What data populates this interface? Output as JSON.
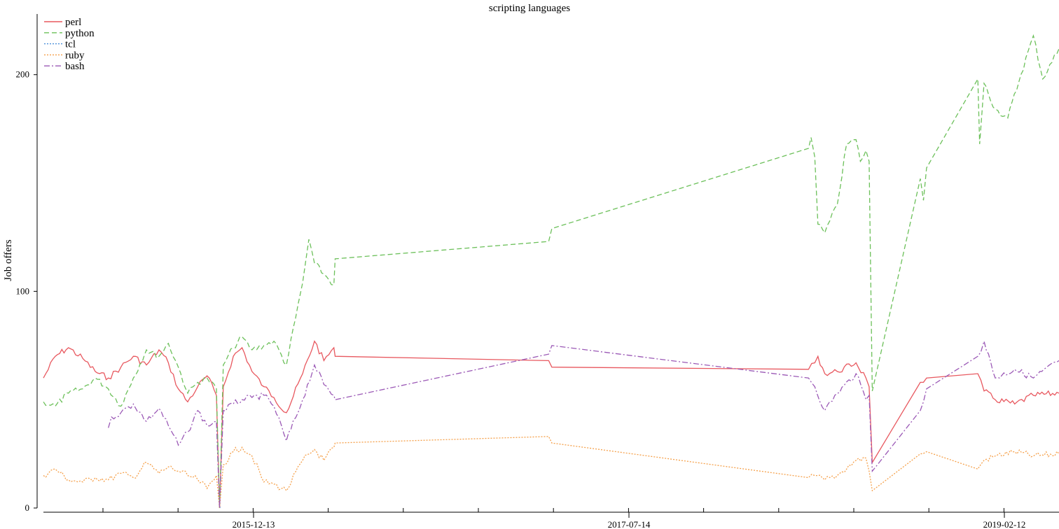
{
  "chart_data": {
    "type": "line",
    "title": "scripting languages",
    "xlabel": "",
    "ylabel": "Job offers",
    "x_tick_labels": [
      "2015-12-13",
      "2017-07-14",
      "2019-02-12"
    ],
    "y_ticks": [
      0,
      100,
      200
    ],
    "ylim": [
      0,
      228
    ],
    "xlim": [
      "2015-01-01",
      "2019-06-15"
    ],
    "grid": false,
    "legend": "top-left",
    "series": [
      {
        "name": "perl",
        "color": "#e8585f",
        "dash": "solid",
        "points": [
          [
            "2015-01-01",
            60
          ],
          [
            "2015-01-20",
            70
          ],
          [
            "2015-02-10",
            74
          ],
          [
            "2015-03-05",
            69
          ],
          [
            "2015-03-25",
            63
          ],
          [
            "2015-04-15",
            60
          ],
          [
            "2015-05-05",
            65
          ],
          [
            "2015-05-25",
            70
          ],
          [
            "2015-06-15",
            66
          ],
          [
            "2015-07-05",
            73
          ],
          [
            "2015-07-20",
            67
          ],
          [
            "2015-08-05",
            55
          ],
          [
            "2015-08-20",
            49
          ],
          [
            "2015-09-05",
            56
          ],
          [
            "2015-09-20",
            61
          ],
          [
            "2015-10-05",
            52
          ],
          [
            "2015-10-10",
            0
          ],
          [
            "2015-10-16",
            56
          ],
          [
            "2015-11-01",
            70
          ],
          [
            "2015-11-15",
            74
          ],
          [
            "2015-12-01",
            63
          ],
          [
            "2015-12-20",
            56
          ],
          [
            "2016-01-05",
            51
          ],
          [
            "2016-01-25",
            44
          ],
          [
            "2016-02-20",
            62
          ],
          [
            "2016-03-10",
            77
          ],
          [
            "2016-03-25",
            68
          ],
          [
            "2016-04-10",
            74
          ],
          [
            "2016-04-12",
            70
          ],
          [
            "2017-03-20",
            68
          ],
          [
            "2017-03-25",
            65
          ],
          [
            "2018-05-10",
            64
          ],
          [
            "2018-05-20",
            67
          ],
          [
            "2018-05-25",
            70
          ],
          [
            "2018-06-05",
            62
          ],
          [
            "2018-06-25",
            63
          ],
          [
            "2018-07-25",
            67
          ],
          [
            "2018-08-10",
            60
          ],
          [
            "2018-08-15",
            56
          ],
          [
            "2018-08-20",
            21
          ],
          [
            "2018-11-05",
            58
          ],
          [
            "2018-11-15",
            60
          ],
          [
            "2019-02-05",
            62
          ],
          [
            "2019-02-15",
            54
          ],
          [
            "2019-03-05",
            50
          ],
          [
            "2019-04-05",
            48
          ],
          [
            "2019-05-05",
            52
          ],
          [
            "2019-06-15",
            53
          ]
        ]
      },
      {
        "name": "python",
        "color": "#6cc05a",
        "dash": "dashed",
        "points": [
          [
            "2015-01-01",
            49
          ],
          [
            "2015-01-20",
            47
          ],
          [
            "2015-02-10",
            53
          ],
          [
            "2015-03-05",
            55
          ],
          [
            "2015-03-25",
            60
          ],
          [
            "2015-04-15",
            55
          ],
          [
            "2015-05-05",
            47
          ],
          [
            "2015-05-25",
            60
          ],
          [
            "2015-06-15",
            73
          ],
          [
            "2015-07-05",
            70
          ],
          [
            "2015-07-20",
            76
          ],
          [
            "2015-08-05",
            65
          ],
          [
            "2015-08-20",
            53
          ],
          [
            "2015-09-05",
            58
          ],
          [
            "2015-09-20",
            60
          ],
          [
            "2015-10-05",
            55
          ],
          [
            "2015-10-10",
            0
          ],
          [
            "2015-10-16",
            66
          ],
          [
            "2015-11-01",
            74
          ],
          [
            "2015-11-15",
            79
          ],
          [
            "2015-12-01",
            73
          ],
          [
            "2015-12-20",
            75
          ],
          [
            "2016-01-05",
            77
          ],
          [
            "2016-01-25",
            66
          ],
          [
            "2016-02-20",
            104
          ],
          [
            "2016-03-01",
            124
          ],
          [
            "2016-03-10",
            113
          ],
          [
            "2016-03-25",
            108
          ],
          [
            "2016-04-10",
            103
          ],
          [
            "2016-04-12",
            115
          ],
          [
            "2017-03-20",
            123
          ],
          [
            "2017-03-25",
            129
          ],
          [
            "2018-05-10",
            166
          ],
          [
            "2018-05-14",
            171
          ],
          [
            "2018-05-20",
            162
          ],
          [
            "2018-05-25",
            131
          ],
          [
            "2018-06-05",
            127
          ],
          [
            "2018-06-25",
            140
          ],
          [
            "2018-07-10",
            168
          ],
          [
            "2018-07-25",
            170
          ],
          [
            "2018-08-01",
            160
          ],
          [
            "2018-08-10",
            165
          ],
          [
            "2018-08-15",
            160
          ],
          [
            "2018-08-20",
            54
          ],
          [
            "2018-11-05",
            152
          ],
          [
            "2018-11-10",
            142
          ],
          [
            "2018-11-15",
            157
          ],
          [
            "2019-02-05",
            198
          ],
          [
            "2019-02-08",
            168
          ],
          [
            "2019-02-15",
            196
          ],
          [
            "2019-03-05",
            184
          ],
          [
            "2019-03-25",
            180
          ],
          [
            "2019-04-15",
            200
          ],
          [
            "2019-05-05",
            218
          ],
          [
            "2019-05-20",
            198
          ],
          [
            "2019-06-15",
            212
          ]
        ]
      },
      {
        "name": "tcl",
        "color": "#4a90d9",
        "dash": "dotted",
        "points": [
          [
            "2015-10-10",
            0
          ],
          [
            "2015-10-12",
            1
          ]
        ]
      },
      {
        "name": "ruby",
        "color": "#f5a04a",
        "dash": "dotted",
        "points": [
          [
            "2015-01-01",
            15
          ],
          [
            "2015-01-20",
            18
          ],
          [
            "2015-02-10",
            13
          ],
          [
            "2015-03-05",
            12
          ],
          [
            "2015-03-25",
            14
          ],
          [
            "2015-04-15",
            13
          ],
          [
            "2015-05-05",
            16
          ],
          [
            "2015-05-25",
            14
          ],
          [
            "2015-06-15",
            21
          ],
          [
            "2015-07-05",
            16
          ],
          [
            "2015-07-20",
            19
          ],
          [
            "2015-08-05",
            17
          ],
          [
            "2015-08-20",
            15
          ],
          [
            "2015-09-05",
            13
          ],
          [
            "2015-09-20",
            9
          ],
          [
            "2015-10-05",
            15
          ],
          [
            "2015-10-10",
            0
          ],
          [
            "2015-10-16",
            20
          ],
          [
            "2015-11-01",
            26
          ],
          [
            "2015-11-15",
            28
          ],
          [
            "2015-12-01",
            24
          ],
          [
            "2015-12-20",
            12
          ],
          [
            "2016-01-05",
            11
          ],
          [
            "2016-01-25",
            8
          ],
          [
            "2016-02-20",
            22
          ],
          [
            "2016-03-10",
            27
          ],
          [
            "2016-03-25",
            22
          ],
          [
            "2016-04-10",
            28
          ],
          [
            "2016-04-12",
            30
          ],
          [
            "2017-03-20",
            33
          ],
          [
            "2017-03-25",
            30
          ],
          [
            "2018-05-10",
            14
          ],
          [
            "2018-05-20",
            15
          ],
          [
            "2018-06-05",
            13
          ],
          [
            "2018-06-25",
            15
          ],
          [
            "2018-07-25",
            22
          ],
          [
            "2018-08-10",
            23
          ],
          [
            "2018-08-15",
            17
          ],
          [
            "2018-08-20",
            8
          ],
          [
            "2018-11-05",
            25
          ],
          [
            "2018-11-15",
            26
          ],
          [
            "2019-02-05",
            18
          ],
          [
            "2019-02-15",
            22
          ],
          [
            "2019-03-05",
            24
          ],
          [
            "2019-04-05",
            26
          ],
          [
            "2019-05-05",
            24
          ],
          [
            "2019-06-15",
            25
          ]
        ]
      },
      {
        "name": "bash",
        "color": "#9b59b6",
        "dash": "dashdot",
        "points": [
          [
            "2015-04-15",
            37
          ],
          [
            "2015-04-20",
            42
          ],
          [
            "2015-05-05",
            44
          ],
          [
            "2015-05-25",
            48
          ],
          [
            "2015-06-15",
            40
          ],
          [
            "2015-07-05",
            46
          ],
          [
            "2015-07-20",
            38
          ],
          [
            "2015-08-05",
            29
          ],
          [
            "2015-08-20",
            35
          ],
          [
            "2015-09-05",
            45
          ],
          [
            "2015-09-20",
            38
          ],
          [
            "2015-10-05",
            40
          ],
          [
            "2015-10-10",
            0
          ],
          [
            "2015-10-16",
            45
          ],
          [
            "2015-11-01",
            48
          ],
          [
            "2015-11-15",
            50
          ],
          [
            "2015-12-01",
            51
          ],
          [
            "2015-12-20",
            52
          ],
          [
            "2016-01-05",
            47
          ],
          [
            "2016-01-25",
            31
          ],
          [
            "2016-02-20",
            50
          ],
          [
            "2016-03-10",
            66
          ],
          [
            "2016-03-25",
            57
          ],
          [
            "2016-04-10",
            52
          ],
          [
            "2016-04-12",
            50
          ],
          [
            "2017-03-20",
            71
          ],
          [
            "2017-03-25",
            75
          ],
          [
            "2018-05-10",
            60
          ],
          [
            "2018-05-20",
            56
          ],
          [
            "2018-06-05",
            45
          ],
          [
            "2018-06-25",
            53
          ],
          [
            "2018-07-25",
            62
          ],
          [
            "2018-08-10",
            50
          ],
          [
            "2018-08-15",
            52
          ],
          [
            "2018-08-20",
            17
          ],
          [
            "2018-11-05",
            45
          ],
          [
            "2018-11-15",
            55
          ],
          [
            "2019-02-05",
            70
          ],
          [
            "2019-02-15",
            77
          ],
          [
            "2019-03-05",
            60
          ],
          [
            "2019-04-05",
            64
          ],
          [
            "2019-05-05",
            60
          ],
          [
            "2019-06-15",
            68
          ]
        ]
      }
    ]
  }
}
